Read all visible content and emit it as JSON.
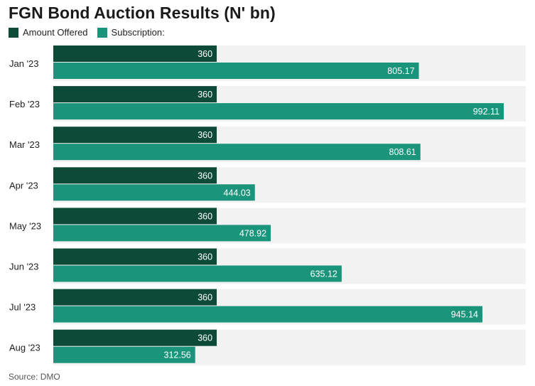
{
  "colors": {
    "offered": "#0d4a37",
    "subscription": "#1a957b",
    "row_band": "#f2f2f2",
    "label_text": "#ffffff"
  },
  "chart_data": {
    "type": "bar",
    "orientation": "horizontal",
    "title": "FGN Bond Auction Results (N' bn)",
    "categories": [
      "Jan '23",
      "Feb '23",
      "Mar '23",
      "Apr '23",
      "May '23",
      "Jun '23",
      "Jul '23",
      "Aug '23"
    ],
    "series": [
      {
        "name": "Amount Offered",
        "values": [
          360,
          360,
          360,
          360,
          360,
          360,
          360,
          360
        ]
      },
      {
        "name": "Subscription:",
        "values": [
          805.17,
          992.11,
          808.61,
          444.03,
          478.92,
          635.12,
          945.14,
          312.56
        ]
      }
    ],
    "value_labels": [
      [
        "360",
        "360",
        "360",
        "360",
        "360",
        "360",
        "360",
        "360"
      ],
      [
        "805.17",
        "992.11",
        "808.61",
        "444.03",
        "478.92",
        "635.12",
        "945.14",
        "312.56"
      ]
    ],
    "xlim": [
      0,
      1000
    ],
    "grid": false,
    "legend_position": "top-left",
    "source": "Source: DMO"
  }
}
